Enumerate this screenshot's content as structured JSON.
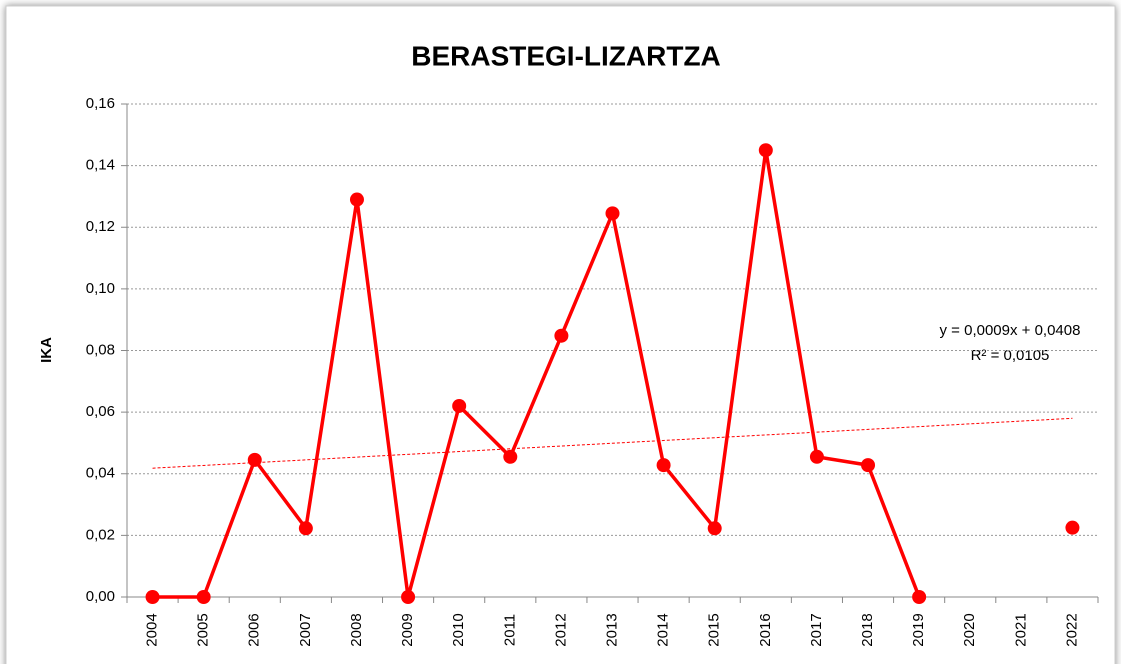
{
  "chart_data": {
    "type": "line",
    "title": "BERASTEGI-LIZARTZA",
    "y_label": "IKA",
    "categories": [
      "2004",
      "2005",
      "2006",
      "2007",
      "2008",
      "2009",
      "2010",
      "2011",
      "2012",
      "2013",
      "2014",
      "2015",
      "2016",
      "2017",
      "2018",
      "2019",
      "2020",
      "2021",
      "2022"
    ],
    "series": [
      {
        "name": "IKA",
        "color": "#ff0000",
        "values": [
          0,
          0,
          0.0445,
          0.0223,
          0.129,
          0,
          0.062,
          0.0455,
          0.0848,
          0.1245,
          0.0428,
          0.0223,
          0.145,
          0.0455,
          0.0428,
          0,
          null,
          null,
          0.0225
        ]
      }
    ],
    "trendline": {
      "color": "#ff0000",
      "start": 0.0418,
      "end": 0.058
    },
    "annotations": [
      "y = 0,0009x + 0,0408",
      "R² = 0,0105"
    ],
    "ylim": [
      0,
      0.16
    ],
    "yticks": [
      {
        "value": 0,
        "label": "0,00"
      },
      {
        "value": 0.02,
        "label": "0,02"
      },
      {
        "value": 0.04,
        "label": "0,04"
      },
      {
        "value": 0.06,
        "label": "0,06"
      },
      {
        "value": 0.08,
        "label": "0,08"
      },
      {
        "value": 0.1,
        "label": "0,10"
      },
      {
        "value": 0.12,
        "label": "0,12"
      },
      {
        "value": 0.14,
        "label": "0,14"
      },
      {
        "value": 0.16,
        "label": "0,16"
      }
    ],
    "grid": true
  }
}
